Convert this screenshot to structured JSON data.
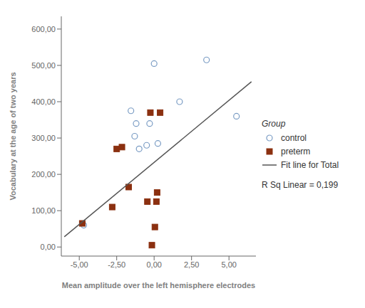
{
  "chart_data": {
    "type": "scatter",
    "xlabel": "Mean amplitude over the left hemisphere electrodes",
    "ylabel": "Vocabulary at the age of two years",
    "legend_title": "Group",
    "legend": "right",
    "grid": false,
    "annotations": [
      "R Sq Linear = 0,199"
    ],
    "xlim": [
      -6.2,
      6.8
    ],
    "ylim": [
      -25,
      635
    ],
    "xticks": [
      {
        "value": -5.0,
        "label": "-5,00"
      },
      {
        "value": -2.5,
        "label": "-2,50"
      },
      {
        "value": 0.0,
        "label": "0,00"
      },
      {
        "value": 2.5,
        "label": "2,50"
      },
      {
        "value": 5.0,
        "label": "5,00"
      }
    ],
    "yticks": [
      {
        "value": 0,
        "label": "0,00"
      },
      {
        "value": 100,
        "label": "100,00"
      },
      {
        "value": 200,
        "label": "200,00"
      },
      {
        "value": 300,
        "label": "300,00"
      },
      {
        "value": 400,
        "label": "400,00"
      },
      {
        "value": 500,
        "label": "500,00"
      },
      {
        "value": 600,
        "label": "600,00"
      }
    ],
    "series": [
      {
        "name": "control",
        "type": "scatter",
        "marker": "open_circle",
        "color": "#7a9cc4",
        "x": [
          -4.7,
          -1.3,
          -1.55,
          -1.2,
          0.0,
          1.7,
          3.5,
          5.5,
          -0.5,
          -1.0,
          -0.3,
          0.25
        ],
        "values": [
          60,
          305,
          375,
          340,
          505,
          400,
          515,
          360,
          280,
          270,
          340,
          285
        ]
      },
      {
        "name": "preterm",
        "type": "scatter",
        "marker": "square",
        "color": "#8b3010",
        "x": [
          -4.8,
          -2.8,
          -2.5,
          -2.15,
          -1.7,
          -0.45,
          -0.25,
          -0.15,
          0.05,
          0.15,
          0.2,
          0.4
        ],
        "values": [
          65,
          110,
          270,
          275,
          165,
          125,
          370,
          5,
          55,
          125,
          150,
          370
        ]
      },
      {
        "name": "Fit line for Total",
        "type": "line",
        "color": "#555555",
        "x": [
          -6.0,
          6.5
        ],
        "values": [
          28,
          455
        ]
      }
    ]
  }
}
